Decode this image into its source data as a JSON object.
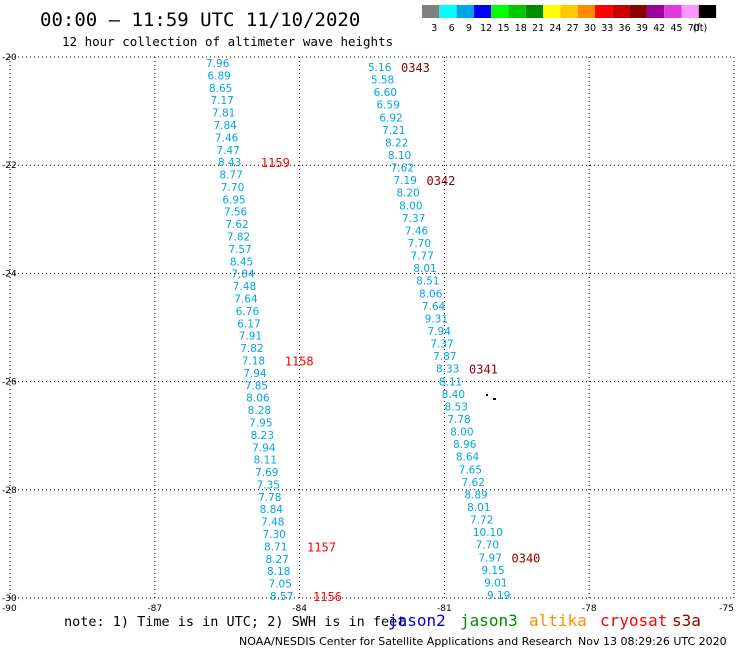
{
  "title": "00:00 – 11:59 UTC 11/10/2020",
  "subtitle": "12 hour collection of altimeter wave heights",
  "legend": {
    "unit": "(ft)",
    "bins": [
      {
        "label": "3",
        "color": "#808080"
      },
      {
        "label": "6",
        "color": "#00ffff"
      },
      {
        "label": "9",
        "color": "#00a5e6"
      },
      {
        "label": "12",
        "color": "#0000ff"
      },
      {
        "label": "15",
        "color": "#00ff00"
      },
      {
        "label": "18",
        "color": "#00c800"
      },
      {
        "label": "21",
        "color": "#008c00"
      },
      {
        "label": "24",
        "color": "#ffff00"
      },
      {
        "label": "27",
        "color": "#ffc800"
      },
      {
        "label": "30",
        "color": "#ff8c00"
      },
      {
        "label": "33",
        "color": "#ff0000"
      },
      {
        "label": "36",
        "color": "#c80000"
      },
      {
        "label": "39",
        "color": "#8c0000"
      },
      {
        "label": "42",
        "color": "#9b009b"
      },
      {
        "label": "45",
        "color": "#dc3cdc"
      },
      {
        "label": "70",
        "color": "#ff96ff"
      },
      {
        "label": "",
        "color": "#000000"
      }
    ]
  },
  "map": {
    "lon_range": [
      -90,
      -75
    ],
    "lat_range": [
      -30,
      -20
    ],
    "lon_ticks": [
      "-90",
      "-87",
      "-84",
      "-81",
      "-78",
      "-75"
    ],
    "lat_ticks": [
      "-20",
      "-22",
      "-24",
      "-26",
      "-28",
      "-30"
    ]
  },
  "tracks": [
    {
      "name": "west-track",
      "color": "#00a5e6",
      "values": [
        "7.96",
        "6.89",
        "8.65",
        "7.17",
        "7.81",
        "7.84",
        "7.46",
        "7.47",
        "8.43",
        "8.77",
        "7.70",
        "6.95",
        "7.56",
        "7.62",
        "7.82",
        "7.57",
        "8.45",
        "7.84",
        "7.48",
        "7.64",
        "6.76",
        "6.17",
        "7.91",
        "7.82",
        "7.18",
        "7.94",
        "7.85",
        "8.06",
        "8.28",
        "7.95",
        "8.23",
        "7.94",
        "8.11",
        "7.69",
        "7.35",
        "7.78",
        "8.84",
        "7.48",
        "7.30",
        "8.71",
        "8.27",
        "8.18",
        "7.05",
        "8.57"
      ],
      "times": [
        {
          "label": "1159",
          "color": "#ff0000",
          "index": 8
        },
        {
          "label": "1158",
          "color": "#ff0000",
          "index": 24
        },
        {
          "label": "1157",
          "color": "#ff0000",
          "index": 39
        },
        {
          "label": "1156",
          "color": "#ff0000",
          "index": 43
        }
      ]
    },
    {
      "name": "east-track",
      "color": "#00a5e6",
      "values": [
        "5.16",
        "5.58",
        "6.60",
        "6.59",
        "6.92",
        "7.21",
        "8.22",
        "8.10",
        "7.62",
        "7.19",
        "8.20",
        "8.00",
        "7.37",
        "7.46",
        "7.70",
        "7.77",
        "8.01",
        "8.51",
        "8.06",
        "7.64",
        "9.31",
        "7.94",
        "7.37",
        "7.87",
        "8.33",
        "8.11",
        "8.40",
        "8.53",
        "7.78",
        "8.00",
        "8.96",
        "8.64",
        "7.65",
        "7.62",
        "8.89",
        "8.01",
        "7.72",
        "10.10",
        "7.70",
        "7.97",
        "9.15",
        "9.01",
        "9.19"
      ],
      "times": [
        {
          "label": "0343",
          "color": "#8c0000",
          "index": 0
        },
        {
          "label": "0342",
          "color": "#8c0000",
          "index": 9
        },
        {
          "label": "0341",
          "color": "#8c0000",
          "index": 24
        },
        {
          "label": "0340",
          "color": "#8c0000",
          "index": 39
        }
      ]
    }
  ],
  "footer": {
    "note": "note: 1) Time is in UTC; 2) SWH is in feet",
    "satellites": [
      {
        "label": "jason2",
        "color": "#0000dc"
      },
      {
        "label": "jason3",
        "color": "#008c00"
      },
      {
        "label": "altika",
        "color": "#ff8c00"
      },
      {
        "label": "cryosat",
        "color": "#ff0000"
      },
      {
        "label": "s3a",
        "color": "#8c0000"
      }
    ],
    "credit": "NOAA/NESDIS Center for Satellite Applications and Research",
    "timestamp": "Nov 13 08:29:26 UTC 2020"
  }
}
